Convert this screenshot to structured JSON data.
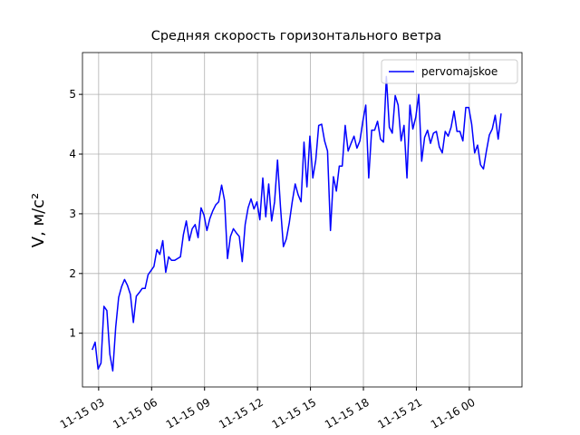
{
  "chart_data": {
    "type": "line",
    "title": "Средняя скорость горизонтального ветра",
    "y_label": "V, м/с²",
    "x": [
      "11-15 02:38",
      "11-15 02:48",
      "11-15 02:58",
      "11-15 03:08",
      "11-15 03:18",
      "11-15 03:28",
      "11-15 03:38",
      "11-15 03:48",
      "11-15 03:58",
      "11-15 04:08",
      "11-15 04:18",
      "11-15 04:28",
      "11-15 04:38",
      "11-15 04:48",
      "11-15 04:58",
      "11-15 05:08",
      "11-15 05:18",
      "11-15 05:28",
      "11-15 05:38",
      "11-15 05:48",
      "11-15 05:58",
      "11-15 06:08",
      "11-15 06:18",
      "11-15 06:28",
      "11-15 06:38",
      "11-15 06:48",
      "11-15 06:58",
      "11-15 07:08",
      "11-15 07:18",
      "11-15 07:28",
      "11-15 07:38",
      "11-15 07:48",
      "11-15 07:58",
      "11-15 08:08",
      "11-15 08:18",
      "11-15 08:28",
      "11-15 08:38",
      "11-15 08:48",
      "11-15 08:58",
      "11-15 09:08",
      "11-15 09:18",
      "11-15 09:28",
      "11-15 09:38",
      "11-15 09:48",
      "11-15 09:58",
      "11-15 10:08",
      "11-15 10:18",
      "11-15 10:28",
      "11-15 10:38",
      "11-15 10:48",
      "11-15 10:58",
      "11-15 11:08",
      "11-15 11:18",
      "11-15 11:28",
      "11-15 11:38",
      "11-15 11:48",
      "11-15 11:58",
      "11-15 12:08",
      "11-15 12:18",
      "11-15 12:28",
      "11-15 12:38",
      "11-15 12:48",
      "11-15 12:58",
      "11-15 13:08",
      "11-15 13:18",
      "11-15 13:28",
      "11-15 13:38",
      "11-15 13:48",
      "11-15 13:58",
      "11-15 14:08",
      "11-15 14:18",
      "11-15 14:28",
      "11-15 14:38",
      "11-15 14:48",
      "11-15 14:58",
      "11-15 15:08",
      "11-15 15:18",
      "11-15 15:28",
      "11-15 15:38",
      "11-15 15:48",
      "11-15 15:58",
      "11-15 16:08",
      "11-15 16:18",
      "11-15 16:28",
      "11-15 16:38",
      "11-15 16:48",
      "11-15 16:58",
      "11-15 17:08",
      "11-15 17:18",
      "11-15 17:28",
      "11-15 17:38",
      "11-15 17:48",
      "11-15 17:58",
      "11-15 18:08",
      "11-15 18:18",
      "11-15 18:28",
      "11-15 18:38",
      "11-15 18:48",
      "11-15 18:58",
      "11-15 19:08",
      "11-15 19:18",
      "11-15 19:28",
      "11-15 19:38",
      "11-15 19:48",
      "11-15 19:58",
      "11-15 20:08",
      "11-15 20:18",
      "11-15 20:28",
      "11-15 20:38",
      "11-15 20:48",
      "11-15 20:58",
      "11-15 21:08",
      "11-15 21:18",
      "11-15 21:28",
      "11-15 21:38",
      "11-15 21:48",
      "11-15 21:58",
      "11-15 22:08",
      "11-15 22:18",
      "11-15 22:28",
      "11-15 22:38",
      "11-15 22:48",
      "11-15 22:58",
      "11-15 23:08",
      "11-15 23:18",
      "11-15 23:28",
      "11-15 23:38",
      "11-15 23:48",
      "11-15 23:58",
      "11-16 00:08",
      "11-16 00:18",
      "11-16 00:28",
      "11-16 00:38",
      "11-16 00:48",
      "11-16 00:58",
      "11-16 01:08",
      "11-16 01:18",
      "11-16 01:28",
      "11-16 01:38",
      "11-16 01:48"
    ],
    "series": [
      {
        "name": "pervomajskoe",
        "color": "#0000ff",
        "values": [
          0.72,
          0.85,
          0.4,
          0.5,
          1.45,
          1.38,
          0.65,
          0.37,
          1.1,
          1.6,
          1.78,
          1.9,
          1.8,
          1.65,
          1.18,
          1.62,
          1.68,
          1.75,
          1.75,
          1.98,
          2.05,
          2.12,
          2.4,
          2.32,
          2.55,
          2.02,
          2.28,
          2.22,
          2.22,
          2.25,
          2.28,
          2.65,
          2.88,
          2.55,
          2.75,
          2.82,
          2.6,
          3.1,
          2.98,
          2.72,
          2.92,
          3.05,
          3.15,
          3.2,
          3.48,
          3.22,
          2.25,
          2.62,
          2.75,
          2.68,
          2.62,
          2.2,
          2.82,
          3.1,
          3.25,
          3.08,
          3.2,
          2.9,
          3.6,
          2.95,
          3.5,
          2.88,
          3.2,
          3.9,
          3.12,
          2.45,
          2.58,
          2.85,
          3.2,
          3.5,
          3.32,
          3.2,
          4.2,
          3.45,
          4.3,
          3.6,
          3.9,
          4.48,
          4.5,
          4.22,
          4.05,
          2.72,
          3.62,
          3.38,
          3.8,
          3.8,
          4.48,
          4.05,
          4.18,
          4.3,
          4.1,
          4.22,
          4.55,
          4.82,
          3.6,
          4.4,
          4.4,
          4.55,
          4.25,
          4.2,
          5.3,
          4.45,
          4.35,
          4.98,
          4.82,
          4.22,
          4.48,
          3.6,
          4.82,
          4.42,
          4.62,
          5.0,
          3.88,
          4.28,
          4.4,
          4.18,
          4.35,
          4.38,
          4.12,
          4.02,
          4.38,
          4.3,
          4.45,
          4.72,
          4.38,
          4.38,
          4.22,
          4.78,
          4.78,
          4.5,
          4.02,
          4.15,
          3.82,
          3.75,
          4.05,
          4.32,
          4.42,
          4.65,
          4.25,
          4.68
        ]
      }
    ],
    "xlim": [
      "11-15 02:05",
      "11-16 02:59"
    ],
    "xticks": [
      {
        "value": "11-15 03:00",
        "label": "11-15 03"
      },
      {
        "value": "11-15 06:00",
        "label": "11-15 06"
      },
      {
        "value": "11-15 09:00",
        "label": "11-15 09"
      },
      {
        "value": "11-15 12:00",
        "label": "11-15 12"
      },
      {
        "value": "11-15 15:00",
        "label": "11-15 15"
      },
      {
        "value": "11-15 18:00",
        "label": "11-15 18"
      },
      {
        "value": "11-15 21:00",
        "label": "11-15 21"
      },
      {
        "value": "11-16 00:00",
        "label": "11-16 00"
      }
    ],
    "ylim": [
      0.1,
      5.7
    ],
    "yticks": [
      1,
      2,
      3,
      4,
      5
    ],
    "grid": true,
    "legend": "upper right"
  }
}
